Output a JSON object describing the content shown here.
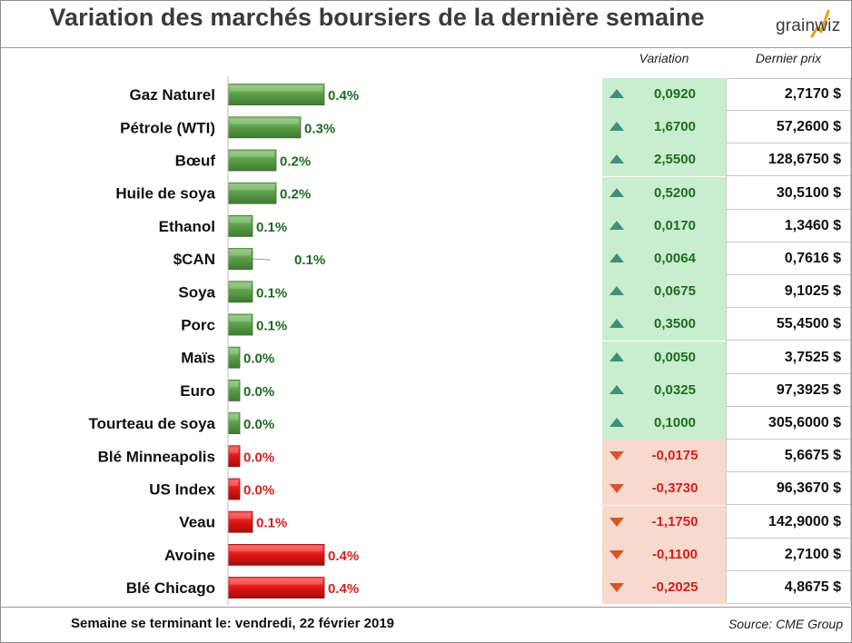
{
  "title": "Variation des marchés boursiers de la dernière semaine",
  "logo": {
    "text": "grainwiz",
    "icon": "rising-chart-logo-icon"
  },
  "table_headers": {
    "variation": "Variation",
    "price": "Dernier prix"
  },
  "colors": {
    "up_bar": "#5a9e47",
    "down_bar": "#e01515",
    "up_text": "#1f6b23",
    "down_text": "#d32020",
    "up_fill": "#c9edcf",
    "down_fill": "#f8d9cd",
    "up_triangle": "#3f8f7a",
    "down_triangle": "#d9532b"
  },
  "chart_data": {
    "type": "bar",
    "orientation": "horizontal",
    "categories": [
      "Gaz Naturel",
      "Pétrole (WTI)",
      "Bœuf",
      "Huile de soya",
      "Ethanol",
      "$CAN",
      "Soya",
      "Porc",
      "Maïs",
      "Euro",
      "Tourteau de soya",
      "Blé Minneapolis",
      "US Index",
      "Veau",
      "Avoine",
      "Blé Chicago"
    ],
    "values": [
      0.4,
      0.3,
      0.2,
      0.2,
      0.1,
      0.1,
      0.1,
      0.1,
      0.0,
      0.0,
      0.0,
      0.0,
      0.0,
      0.1,
      0.4,
      0.4
    ],
    "labels": [
      "0.4%",
      "0.3%",
      "0.2%",
      "0.2%",
      "0.1%",
      "0.1%",
      "0.1%",
      "0.1%",
      "0.0%",
      "0.0%",
      "0.0%",
      "0.0%",
      "0.0%",
      "0.1%",
      "0.4%",
      "0.4%"
    ],
    "direction": [
      "up",
      "up",
      "up",
      "up",
      "up",
      "up",
      "up",
      "up",
      "up",
      "up",
      "up",
      "down",
      "down",
      "down",
      "down",
      "down"
    ],
    "unit": "%",
    "grid": false,
    "legend": "none"
  },
  "rows": [
    {
      "name": "Gaz Naturel",
      "dir": "up",
      "variation": "0,0920",
      "price": "2,7170 $"
    },
    {
      "name": "Pétrole (WTI)",
      "dir": "up",
      "variation": "1,6700",
      "price": "57,2600 $"
    },
    {
      "name": "Bœuf",
      "dir": "up",
      "variation": "2,5500",
      "price": "128,6750 $"
    },
    {
      "name": "Huile de soya",
      "dir": "up",
      "variation": "0,5200",
      "price": "30,5100 $"
    },
    {
      "name": "Ethanol",
      "dir": "up",
      "variation": "0,0170",
      "price": "1,3460 $"
    },
    {
      "name": "$CAN",
      "dir": "up",
      "variation": "0,0064",
      "price": "0,7616 $"
    },
    {
      "name": "Soya",
      "dir": "up",
      "variation": "0,0675",
      "price": "9,1025 $"
    },
    {
      "name": "Porc",
      "dir": "up",
      "variation": "0,3500",
      "price": "55,4500 $"
    },
    {
      "name": "Maïs",
      "dir": "up",
      "variation": "0,0050",
      "price": "3,7525 $"
    },
    {
      "name": "Euro",
      "dir": "up",
      "variation": "0,0325",
      "price": "97,3925 $"
    },
    {
      "name": "Tourteau de soya",
      "dir": "up",
      "variation": "0,1000",
      "price": "305,6000 $"
    },
    {
      "name": "Blé Minneapolis",
      "dir": "down",
      "variation": "-0,0175",
      "price": "5,6675 $"
    },
    {
      "name": "US Index",
      "dir": "down",
      "variation": "-0,3730",
      "price": "96,3670 $"
    },
    {
      "name": "Veau",
      "dir": "down",
      "variation": "-1,1750",
      "price": "142,9000 $"
    },
    {
      "name": "Avoine",
      "dir": "down",
      "variation": "-0,1100",
      "price": "2,7100 $"
    },
    {
      "name": "Blé Chicago",
      "dir": "down",
      "variation": "-0,2025",
      "price": "4,8675 $"
    }
  ],
  "footer": {
    "week_label": "Semaine se terminant le:",
    "week_date": "vendredi, 22 février 2019",
    "source": "Source: CME Group"
  }
}
